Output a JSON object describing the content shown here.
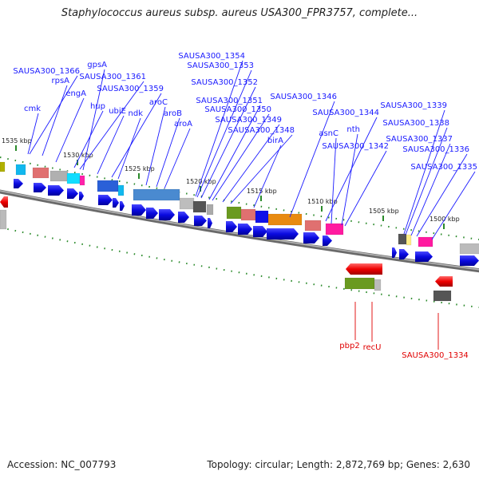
{
  "title": "Staphylococcus aureus subsp. aureus USA300_FPR3757, complete...",
  "footer": {
    "accession": "Accession: NC_007793",
    "summary": "Topology: circular; Length: 2,872,769 bp; Genes: 2,630"
  },
  "colors": {
    "forward_label": "#1a1aff",
    "reverse_label": "#e00000",
    "backbone": "#7a7a7a",
    "tick": "#2a8a2a",
    "cds": "#1010e8",
    "rna": "#ff0000"
  },
  "kbp_ticks": [
    "1535 kbp",
    "1530 kbp",
    "1525 kbp",
    "1520 kbp",
    "1515 kbp",
    "1510 kbp",
    "1505 kbp",
    "1500 kbp"
  ],
  "forward_genes": [
    "SAUSA300_1366",
    "cmk",
    "rpsA",
    "gpsA",
    "engA",
    "SAUSA300_1361",
    "hup",
    "ubiE",
    "SAUSA300_1359",
    "ndk",
    "aroC",
    "aroB",
    "aroA",
    "SAUSA300_1354",
    "SAUSA300_1353",
    "SAUSA300_1352",
    "SAUSA300_1351",
    "SAUSA300_1350",
    "SAUSA300_1349",
    "SAUSA300_1348",
    "birA",
    "SAUSA300_1346",
    "SAUSA300_1344",
    "asnC",
    "nth",
    "SAUSA300_1342",
    "SAUSA300_1339",
    "SAUSA300_1338",
    "SAUSA300_1337",
    "SAUSA300_1336",
    "SAUSA300_1335"
  ],
  "reverse_genes": [
    "pbp2",
    "recU",
    "SAUSA300_1334"
  ]
}
